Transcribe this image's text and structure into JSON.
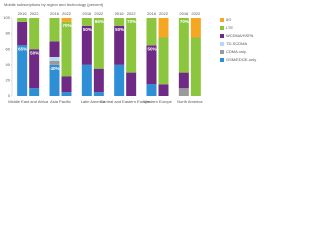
{
  "chart_data": {
    "type": "bar",
    "stacked": true,
    "title": "Mobile subscriptions by region and technology (percent)",
    "categories": [
      "Middle East and Africa",
      "Asia Pacific",
      "Latin America",
      "Central and Eastern Europe",
      "Western Europe",
      "North America"
    ],
    "periods": [
      "2016",
      "2022"
    ],
    "ylim": [
      0,
      100
    ],
    "yticks": [
      0,
      20,
      40,
      60,
      80,
      100
    ],
    "grid": false,
    "legend": "right",
    "series": [
      {
        "name": "GSM/EDGE-only",
        "color": "#2f8fd6",
        "values": [
          [
            65,
            10
          ],
          [
            40,
            5
          ],
          [
            40,
            5
          ],
          [
            40,
            0
          ],
          [
            15,
            0
          ],
          [
            0,
            0
          ]
        ],
        "value_labels": [
          [
            "65%",
            null
          ],
          [
            "40%",
            null
          ],
          [
            null,
            null
          ],
          [
            null,
            null
          ],
          [
            null,
            null
          ],
          [
            null,
            null
          ]
        ]
      },
      {
        "name": "CDMA only",
        "color": "#9a9a9a",
        "values": [
          [
            0,
            0
          ],
          [
            5,
            0
          ],
          [
            0,
            0
          ],
          [
            0,
            0
          ],
          [
            0,
            0
          ],
          [
            10,
            0
          ]
        ]
      },
      {
        "name": "TD-SCDMA",
        "color": "#b7d9f0",
        "values": [
          [
            0,
            0
          ],
          [
            5,
            0
          ],
          [
            0,
            0
          ],
          [
            0,
            0
          ],
          [
            0,
            0
          ],
          [
            0,
            0
          ]
        ]
      },
      {
        "name": "WCDMA/HSPA",
        "color": "#6e2a85",
        "values": [
          [
            30,
            50
          ],
          [
            20,
            20
          ],
          [
            50,
            30
          ],
          [
            50,
            30
          ],
          [
            50,
            15
          ],
          [
            20,
            0
          ]
        ],
        "value_labels": [
          [
            null,
            "50%"
          ],
          [
            null,
            null
          ],
          [
            "50%",
            null
          ],
          [
            "50%",
            null
          ],
          [
            "50%",
            null
          ],
          [
            null,
            null
          ]
        ]
      },
      {
        "name": "LTE",
        "color": "#8cc63e",
        "values": [
          [
            5,
            40
          ],
          [
            30,
            70
          ],
          [
            10,
            65
          ],
          [
            10,
            70
          ],
          [
            35,
            60
          ],
          [
            70,
            75
          ]
        ],
        "value_labels": [
          [
            null,
            null
          ],
          [
            null,
            "70%"
          ],
          [
            null,
            "65%"
          ],
          [
            null,
            "70%"
          ],
          [
            null,
            null
          ],
          [
            "70%",
            null
          ]
        ]
      },
      {
        "name": "5G",
        "color": "#f5a623",
        "values": [
          [
            0,
            0
          ],
          [
            0,
            5
          ],
          [
            0,
            0
          ],
          [
            0,
            0
          ],
          [
            0,
            25
          ],
          [
            0,
            25
          ]
        ]
      }
    ]
  }
}
